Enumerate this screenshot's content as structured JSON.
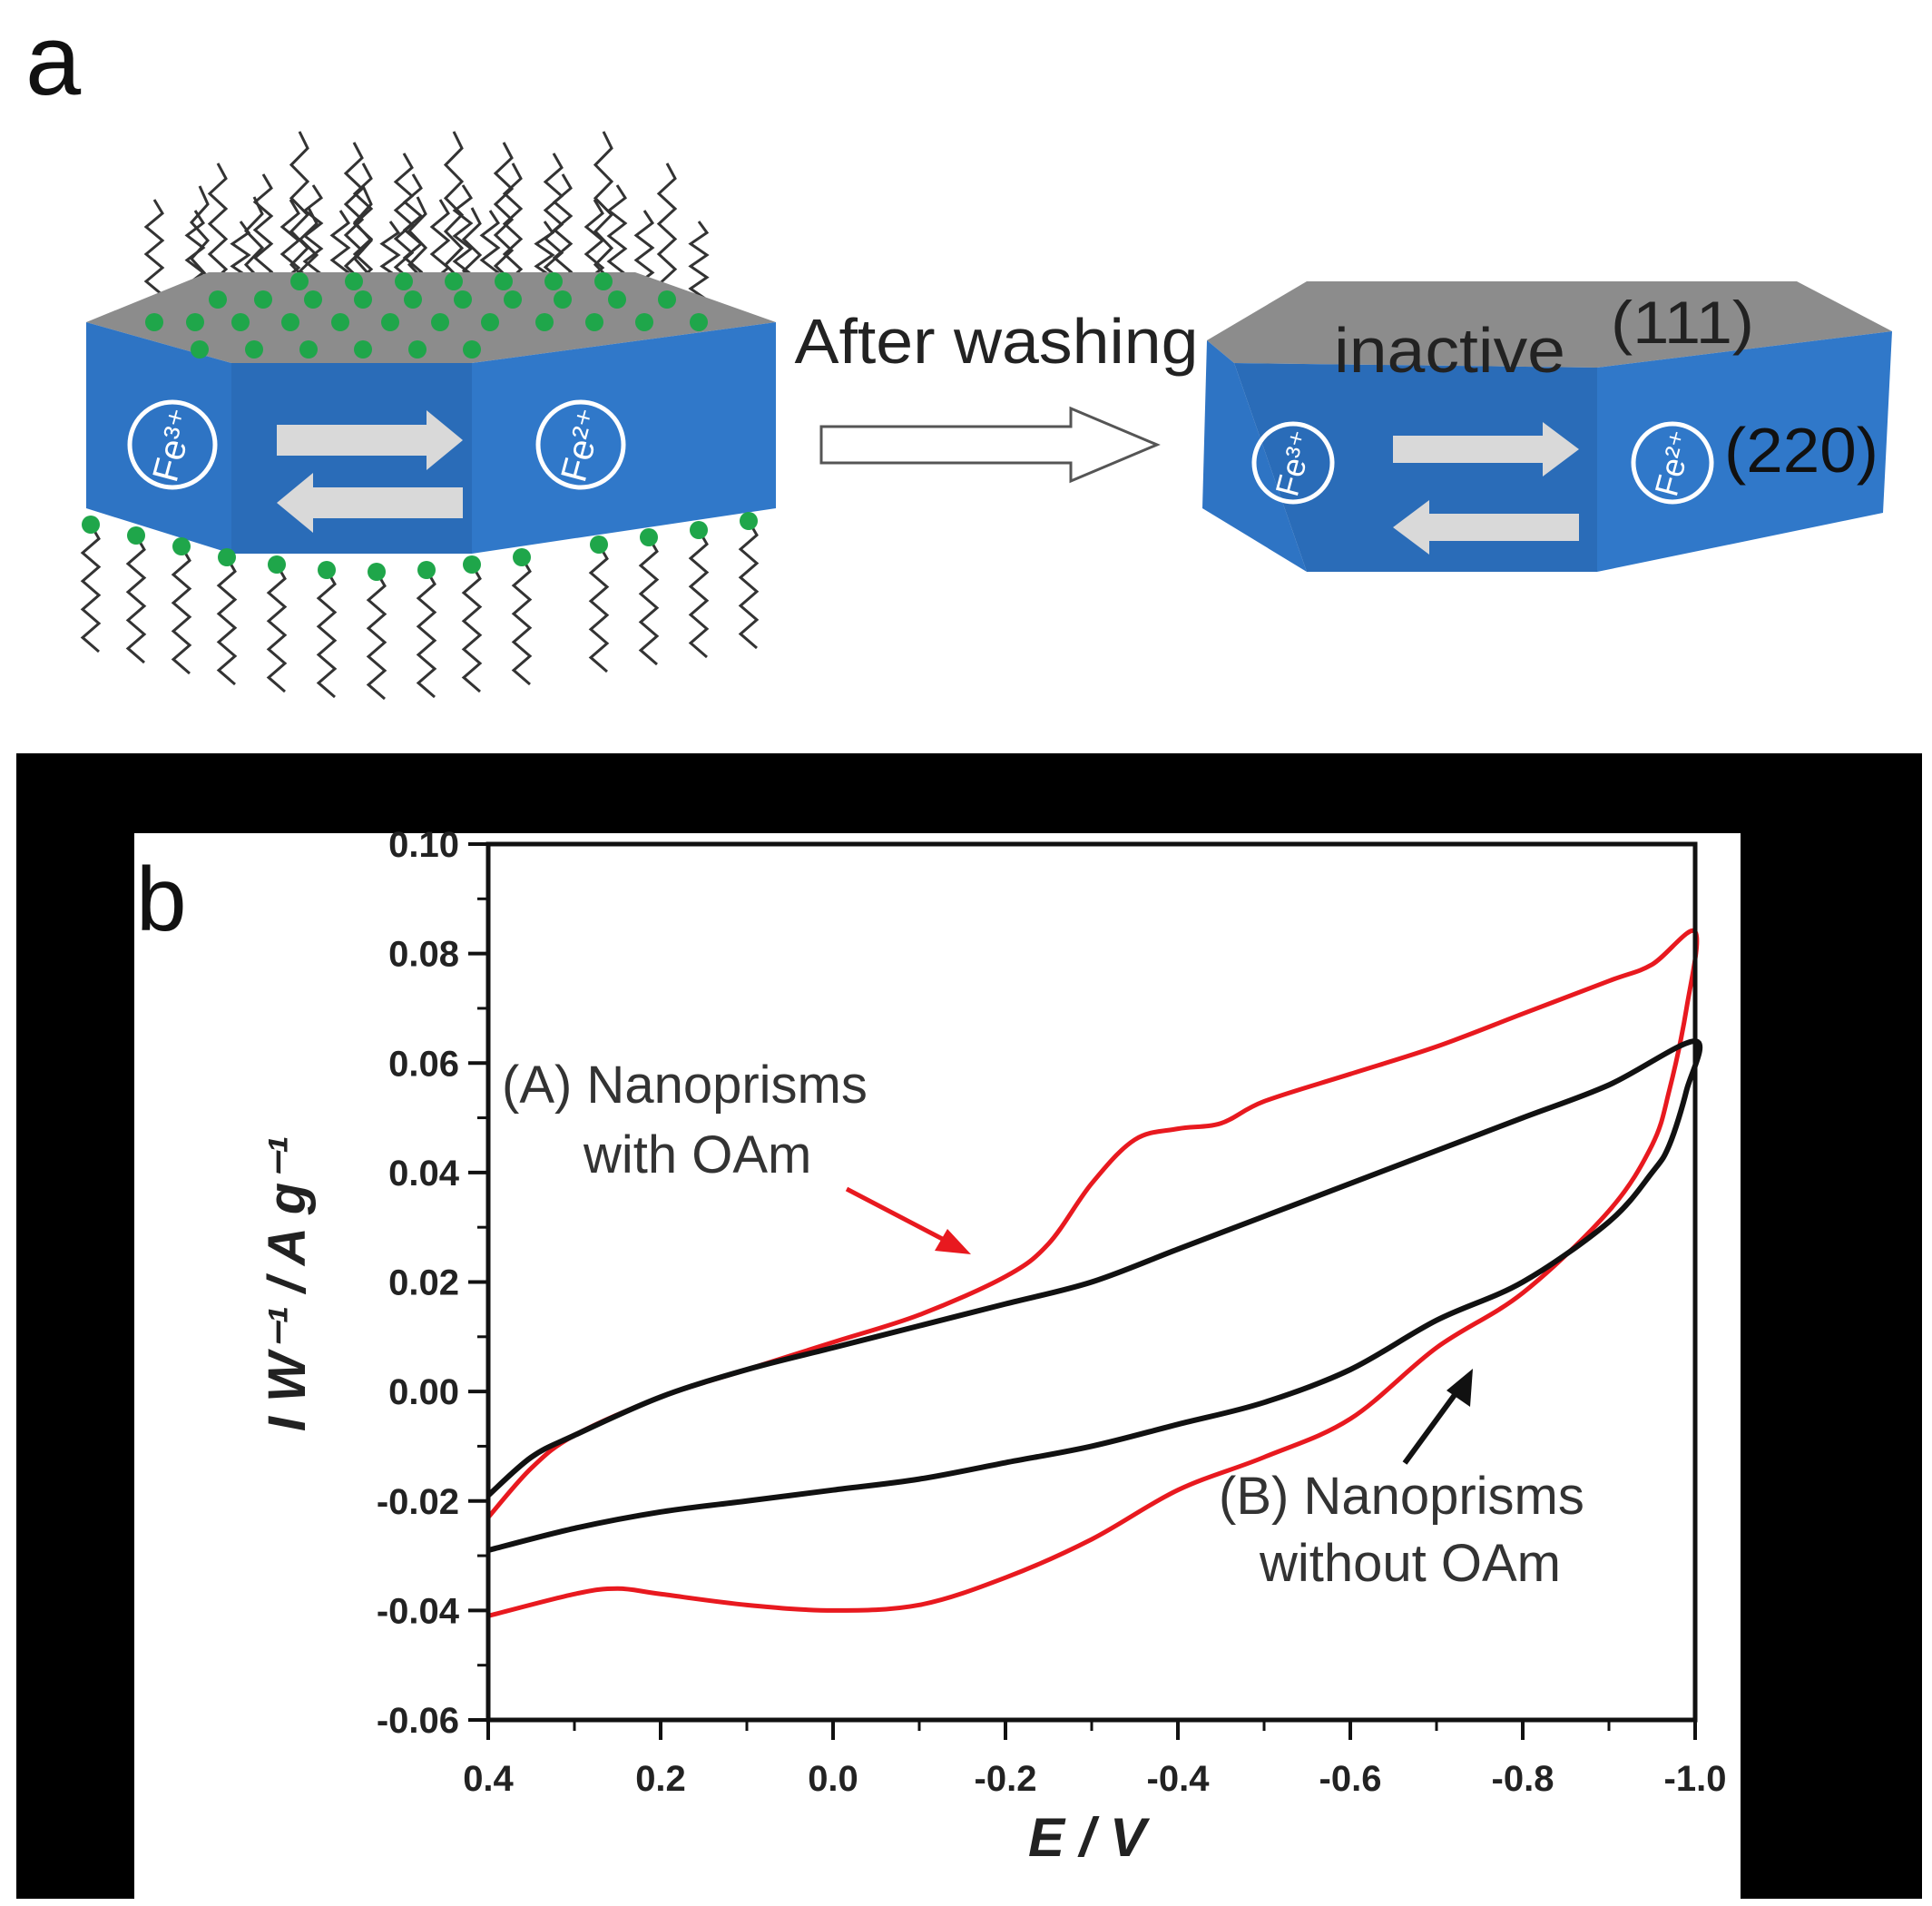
{
  "panel_a": {
    "letter": "a",
    "arrow_label": "After washing",
    "left_prism": {
      "ion_left": "Fe³⁺",
      "ion_right": "Fe²⁺"
    },
    "right_prism": {
      "ion_left": "Fe³⁺",
      "ion_right": "Fe²⁺",
      "top_label": "inactive",
      "top_facet": "(111)",
      "side_facet": "(220)"
    },
    "colors": {
      "prism_side": "#2e74c4",
      "prism_top": "#8c8c8c",
      "ligand_head": "#1fa64a",
      "ligand_tail": "#333333"
    }
  },
  "panel_b": {
    "letter": "b",
    "annotations": {
      "a_line1": "(A) Nanoprisms",
      "a_line2": "with OAm",
      "b_line1": "(B) Nanoprisms",
      "b_line2": "without OAm"
    }
  },
  "chart_data": {
    "type": "line",
    "xlabel": "E / V",
    "ylabel": "I W⁻¹ / A g⁻¹",
    "xlim": [
      0.4,
      -1.0
    ],
    "ylim": [
      -0.06,
      0.1
    ],
    "x_reversed": true,
    "x_ticks": [
      "0.4",
      "0.2",
      "0.0",
      "-0.2",
      "-0.4",
      "-0.6",
      "-0.8",
      "-1.0"
    ],
    "y_ticks": [
      "-0.06",
      "-0.04",
      "-0.02",
      "0.00",
      "0.02",
      "0.04",
      "0.06",
      "0.08",
      "0.10"
    ],
    "series": [
      {
        "name": "(A) Nanoprisms with OAm",
        "color": "#e8191f",
        "x": [
          0.4,
          0.35,
          0.3,
          0.2,
          0.1,
          0.0,
          -0.1,
          -0.2,
          -0.25,
          -0.3,
          -0.35,
          -0.4,
          -0.45,
          -0.5,
          -0.6,
          -0.7,
          -0.8,
          -0.9,
          -0.95,
          -1.0,
          -0.99,
          -0.97,
          -0.95,
          -0.9,
          -0.8,
          -0.7,
          -0.6,
          -0.5,
          -0.4,
          -0.3,
          -0.2,
          -0.1,
          0.0,
          0.1,
          0.2,
          0.25,
          0.3,
          0.4
        ],
        "y": [
          -0.023,
          -0.014,
          -0.008,
          -0.001,
          0.004,
          0.009,
          0.014,
          0.021,
          0.027,
          0.038,
          0.046,
          0.048,
          0.049,
          0.053,
          0.058,
          0.063,
          0.069,
          0.075,
          0.078,
          0.084,
          0.07,
          0.055,
          0.045,
          0.033,
          0.018,
          0.008,
          -0.005,
          -0.012,
          -0.018,
          -0.027,
          -0.034,
          -0.039,
          -0.04,
          -0.039,
          -0.037,
          -0.036,
          -0.037,
          -0.041
        ]
      },
      {
        "name": "(B) Nanoprisms without OAm",
        "color": "#111111",
        "x": [
          0.4,
          0.35,
          0.3,
          0.2,
          0.1,
          0.0,
          -0.1,
          -0.2,
          -0.3,
          -0.4,
          -0.5,
          -0.6,
          -0.7,
          -0.8,
          -0.9,
          -1.0,
          -0.99,
          -0.97,
          -0.95,
          -0.9,
          -0.8,
          -0.7,
          -0.6,
          -0.5,
          -0.4,
          -0.3,
          -0.2,
          -0.1,
          0.0,
          0.1,
          0.2,
          0.3,
          0.4
        ],
        "y": [
          -0.019,
          -0.012,
          -0.008,
          -0.001,
          0.004,
          0.008,
          0.012,
          0.016,
          0.02,
          0.026,
          0.032,
          0.038,
          0.044,
          0.05,
          0.056,
          0.064,
          0.055,
          0.045,
          0.04,
          0.031,
          0.02,
          0.013,
          0.004,
          -0.002,
          -0.006,
          -0.01,
          -0.013,
          -0.016,
          -0.018,
          -0.02,
          -0.022,
          -0.025,
          -0.029
        ]
      }
    ]
  }
}
